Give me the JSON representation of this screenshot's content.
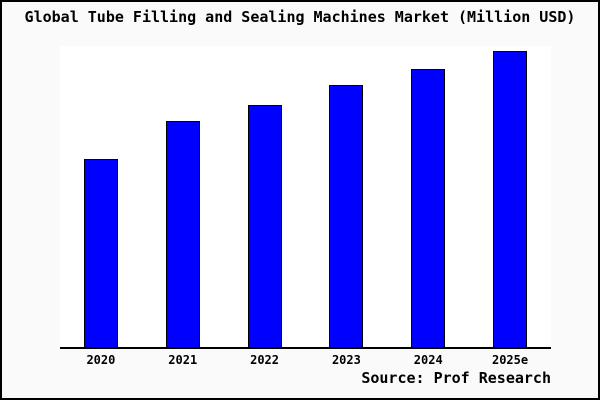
{
  "header": {
    "title": "Global Tube Filling and Sealing Machines Market (Million USD)"
  },
  "footer": {
    "source_label": "Source: Prof Research"
  },
  "colors": {
    "bar_fill": "#0000ff",
    "bar_edge": "#000000",
    "canvas_background": "#fafafa",
    "plot_background": "#ffffff",
    "axis": "#000000",
    "text": "#000000"
  },
  "chart_data": {
    "type": "bar",
    "title": "Global Tube Filling and Sealing Machines Market (Million USD)",
    "categories": [
      "2020",
      "2021",
      "2022",
      "2023",
      "2024",
      "2025e"
    ],
    "values": [
      63.4,
      76.2,
      81.9,
      88.6,
      94.0,
      100.0
    ],
    "xlabel": "",
    "ylabel": "",
    "ylim": [
      0,
      101.7
    ],
    "value_scale": "relative, tallest bar (2025e) = 100; no numeric y-axis shown in figure",
    "grid": false,
    "y_axis_visible": false,
    "legend": null,
    "annotation": "Source: Prof Research"
  }
}
